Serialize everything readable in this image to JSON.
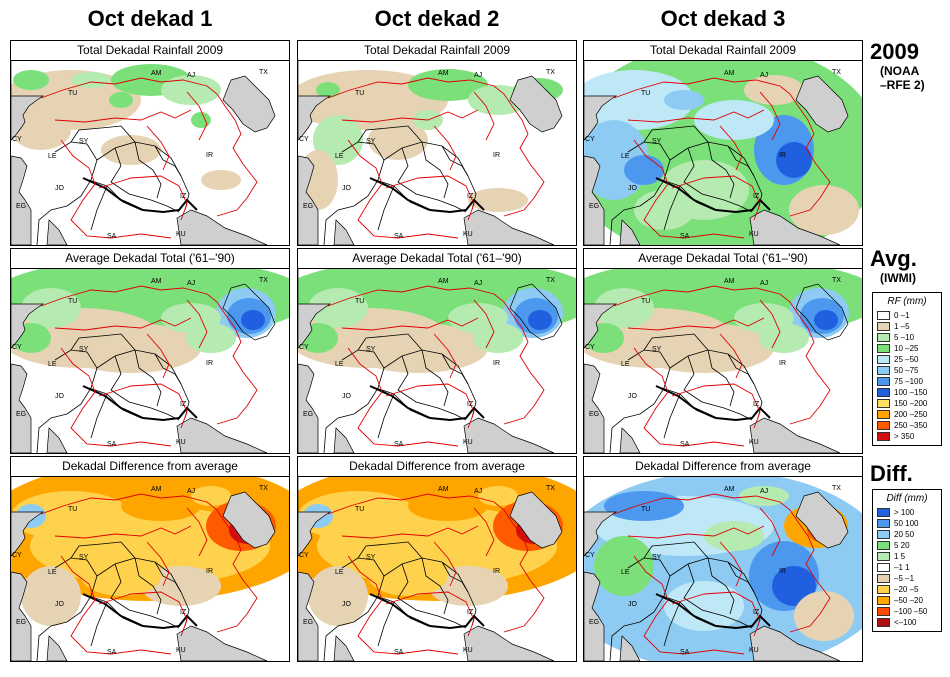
{
  "columns": [
    "Oct dekad 1",
    "Oct dekad 2",
    "Oct dekad 3"
  ],
  "rows": [
    {
      "panel_title": "Total Dekadal Rainfall 2009",
      "head_big": "2009",
      "head_small": [
        "(NOAA",
        "–RFE 2)"
      ],
      "kind": "rain"
    },
    {
      "panel_title": "Average Dekadal Total ('61–'90)",
      "head_big": "Avg.",
      "head_small": [
        "(IWMI)"
      ],
      "kind": "avg"
    },
    {
      "panel_title": "Dekadal Difference from average",
      "head_big": "Diff.",
      "head_small": [],
      "kind": "diff"
    }
  ],
  "map_labels": [
    "AM",
    "AJ",
    "TX",
    "TU",
    "SY",
    "CY",
    "LE",
    "JO",
    "EG",
    "SA",
    "IR",
    "IZ",
    "KU"
  ],
  "legend_rf": {
    "title": "RF (mm)",
    "items": [
      {
        "label": "0 –1",
        "color": "#ffffff"
      },
      {
        "label": "1 –5",
        "color": "#e6d3b3"
      },
      {
        "label": "5 –10",
        "color": "#b5eab0"
      },
      {
        "label": "10 –25",
        "color": "#7be07a"
      },
      {
        "label": "25 –50",
        "color": "#bfe8f7"
      },
      {
        "label": "50 –75",
        "color": "#8ecbf3"
      },
      {
        "label": "75 –100",
        "color": "#4d98ef"
      },
      {
        "label": "100 –150",
        "color": "#1f5fe0"
      },
      {
        "label": "150 –200",
        "color": "#ffe060"
      },
      {
        "label": "200 –250",
        "color": "#ffa500"
      },
      {
        "label": "250 –350",
        "color": "#ff5a00"
      },
      {
        "label": "> 350",
        "color": "#d01010"
      }
    ]
  },
  "legend_diff": {
    "title": "Diff (mm)",
    "items": [
      {
        "label": "> 100",
        "color": "#1f5fe0"
      },
      {
        "label": "50  100",
        "color": "#4d98ef"
      },
      {
        "label": "20  50",
        "color": "#8ecbf3"
      },
      {
        "label": "5  20",
        "color": "#7be07a"
      },
      {
        "label": "1  5",
        "color": "#b5eab0"
      },
      {
        "label": "–1  1",
        "color": "#ffffff"
      },
      {
        "label": "–5  –1",
        "color": "#e6d3b3"
      },
      {
        "label": "–20  –5",
        "color": "#ffd24d"
      },
      {
        "label": "–50  –20",
        "color": "#ffa500"
      },
      {
        "label": "–100  –50",
        "color": "#ff4a00"
      },
      {
        "label": "<–100",
        "color": "#b01010"
      }
    ]
  }
}
